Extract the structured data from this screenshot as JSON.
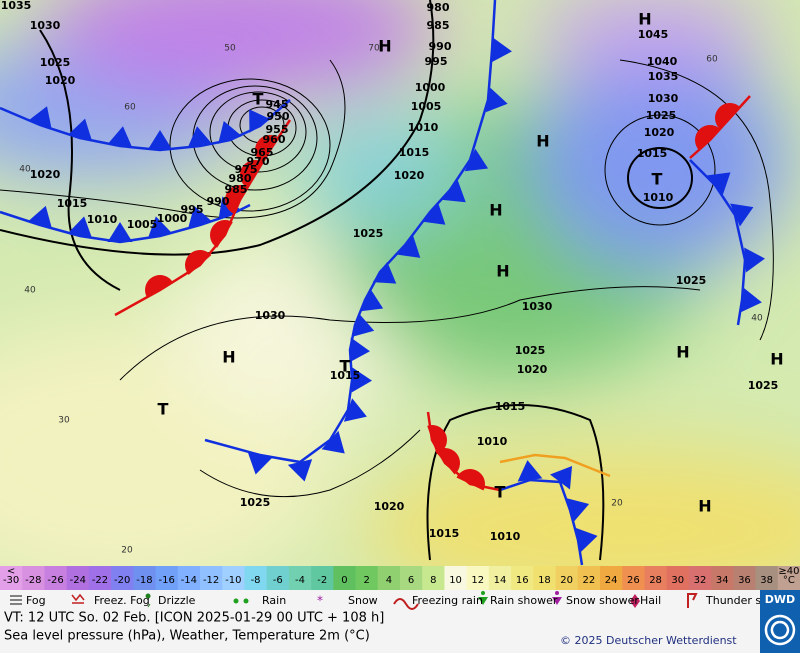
{
  "map": {
    "pressure_labels": [
      "1035",
      "1030",
      "1025",
      "1020",
      "1020",
      "1015",
      "1010",
      "1005",
      "1000",
      "995",
      "990",
      "985",
      "980",
      "975",
      "970",
      "965",
      "960",
      "955",
      "950",
      "945",
      "980",
      "985",
      "990",
      "995",
      "1000",
      "1005",
      "1010",
      "1015",
      "1020",
      "1025",
      "1030",
      "1025",
      "1015",
      "1020",
      "1015",
      "1010",
      "1010",
      "1015",
      "1030",
      "1025",
      "1020",
      "1025",
      "1025",
      "1045",
      "1040",
      "1035",
      "1030",
      "1025",
      "1020",
      "1015",
      "1010"
    ],
    "temperature_labels": [
      "60",
      "50",
      "40",
      "40",
      "30",
      "20",
      "60",
      "40",
      "20",
      "70"
    ],
    "centers": [
      "H",
      "H",
      "T",
      "H",
      "H",
      "H",
      "T",
      "H",
      "T",
      "T",
      "H",
      "H",
      "T",
      "H"
    ]
  },
  "scale": [
    "-30",
    "-28",
    "-26",
    "-24",
    "-22",
    "-20",
    "-18",
    "-16",
    "-14",
    "-12",
    "-10",
    "-8",
    "-6",
    "-4",
    "-2",
    "0",
    "2",
    "4",
    "6",
    "8",
    "10",
    "12",
    "14",
    "16",
    "18",
    "20",
    "22",
    "24",
    "26",
    "28",
    "30",
    "32",
    "34",
    "36",
    "38",
    "°C"
  ],
  "scale_upper": [
    "<",
    "≥40"
  ],
  "scale_colors": [
    "#e3a0e8",
    "#d890e0",
    "#c880e0",
    "#b070e0",
    "#a070e8",
    "#8080f0",
    "#7090f0",
    "#70a0f8",
    "#80b0ff",
    "#90c0ff",
    "#a0d0ff",
    "#80d8f0",
    "#70d0d0",
    "#70d0b0",
    "#60c8a0",
    "#60c060",
    "#70c860",
    "#90d070",
    "#a8d880",
    "#c8e890",
    "#f8f8e0",
    "#f8f8c0",
    "#f0f0a0",
    "#f0e880",
    "#f0e070",
    "#f0d060",
    "#f0c050",
    "#f0a840",
    "#f09050",
    "#e88060",
    "#e07060",
    "#d87070",
    "#c87868",
    "#b88070",
    "#a89080",
    "#c0a090"
  ],
  "legend": [
    "Fog",
    "Freez. Fog",
    "Drizzle",
    "Rain",
    "Snow",
    "Freezing rain",
    "Rain shower",
    "Snow shower",
    "Hail",
    "Thunder storm"
  ],
  "logo": "DWD",
  "footer": {
    "valid_time": "VT: 12 UTC So.  02 Feb. [ICON 2025-01-29  00 UTC + 108 h]",
    "description": "Sea level pressure (hPa), Weather, Temperature 2m (°C)",
    "copyright": "© 2025 Deutscher Wetterdienst"
  }
}
